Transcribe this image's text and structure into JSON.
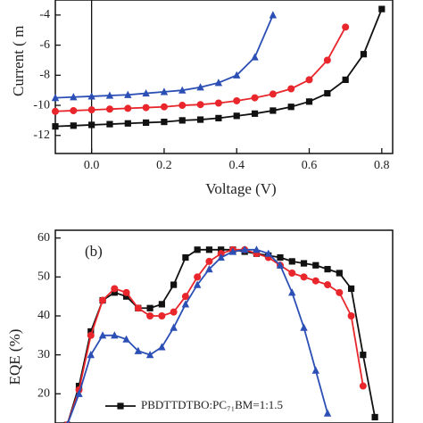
{
  "chart_data": [
    {
      "type": "line",
      "x_label": "Voltage (V)",
      "y_label": "Current ( m",
      "x": [
        -0.1,
        -0.05,
        0,
        0.05,
        0.1,
        0.15,
        0.2,
        0.25,
        0.3,
        0.35,
        0.4,
        0.45,
        0.5,
        0.55,
        0.6,
        0.65,
        0.7,
        0.75,
        0.8
      ],
      "xlim": [
        -0.1,
        0.83
      ],
      "xticks": [
        {
          "value": 0,
          "label": "0.0"
        },
        0.2,
        0.4,
        0.6,
        0.8
      ],
      "ylim": [
        -13.2,
        -3
      ],
      "yticks": [
        -12,
        -10,
        -8,
        -6,
        -4
      ],
      "vlines": [
        0
      ],
      "series": [
        {
          "color": "#111111",
          "marker": "square",
          "values": [
            -11.4,
            -11.35,
            -11.3,
            -11.25,
            -11.2,
            -11.15,
            -11.1,
            -11.0,
            -10.95,
            -10.85,
            -10.7,
            -10.55,
            -10.35,
            -10.1,
            -9.75,
            -9.2,
            -8.3,
            -6.6,
            -3.6
          ]
        },
        {
          "color": "#e8262b",
          "marker": "circle",
          "values": [
            -10.4,
            -10.35,
            -10.3,
            -10.25,
            -10.2,
            -10.15,
            -10.1,
            -10.0,
            -9.95,
            -9.85,
            -9.7,
            -9.5,
            -9.25,
            -8.9,
            -8.3,
            -7.0,
            -4.8,
            null,
            null
          ]
        },
        {
          "color": "#2b4fb5",
          "marker": "triangle",
          "values": [
            -9.5,
            -9.45,
            -9.4,
            -9.35,
            -9.3,
            -9.2,
            -9.1,
            -9.0,
            -8.8,
            -8.5,
            -8.0,
            -6.8,
            -4.0,
            null,
            null,
            null,
            null,
            null,
            null
          ]
        }
      ]
    },
    {
      "type": "line",
      "y_label": "EQE (%)",
      "annotation": "(b)",
      "x": [
        300,
        320,
        340,
        360,
        380,
        400,
        420,
        440,
        460,
        480,
        500,
        520,
        540,
        560,
        580,
        600,
        620,
        640,
        660,
        680,
        700,
        720,
        740,
        760,
        780,
        800,
        820
      ],
      "xlim": [
        280,
        850
      ],
      "ylim": [
        12.5,
        62
      ],
      "yticks": [
        20,
        30,
        40,
        50,
        60
      ],
      "series": [
        {
          "name": "PBDTTDTBO:PC₇₁BM=1:1.5",
          "color": "#111111",
          "marker": "square",
          "values": [
            12,
            22,
            36,
            44,
            46,
            45,
            42,
            42,
            43,
            48,
            55,
            57,
            57,
            57,
            57,
            56.5,
            56,
            55.5,
            55,
            54,
            53.5,
            53,
            52,
            51,
            47,
            30,
            14
          ]
        },
        {
          "color": "#e8262b",
          "marker": "circle",
          "values": [
            12,
            21,
            35,
            44,
            47,
            46,
            42,
            40,
            40,
            41,
            45,
            50,
            54,
            56,
            57,
            57,
            56,
            55,
            53,
            51,
            50,
            49,
            48,
            46,
            40,
            22,
            null
          ]
        },
        {
          "color": "#2b4fb5",
          "marker": "triangle",
          "values": [
            12,
            20,
            30,
            35,
            35,
            34,
            31,
            30,
            32,
            37,
            43,
            48,
            52,
            55,
            56.5,
            57,
            57,
            56,
            53,
            46,
            37,
            26,
            15,
            null,
            null,
            null,
            null
          ]
        }
      ]
    }
  ]
}
